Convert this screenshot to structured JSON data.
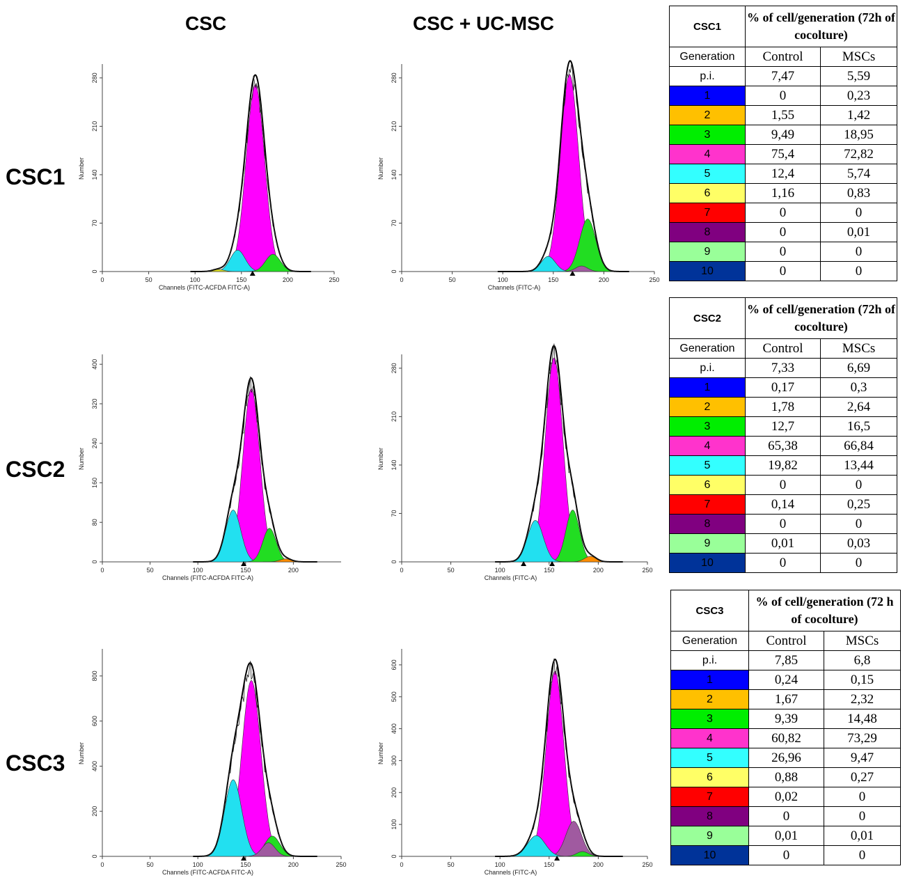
{
  "columns": {
    "left": "CSC",
    "right": "CSC  + UC-MSC"
  },
  "rows": [
    "CSC1",
    "CSC2",
    "CSC3"
  ],
  "chart_data": [
    {
      "type": "area",
      "sample": "CSC1",
      "condition": "CSC",
      "xlim": [
        0,
        250
      ],
      "ylim": [
        0,
        300
      ],
      "xticks": [
        0,
        50,
        100,
        150,
        200,
        250
      ],
      "yticks": [
        0,
        70,
        140,
        210,
        280
      ],
      "xlabel": "Channels (FITC-ACFDA FITC-A)",
      "ylabel": "Number",
      "marker": [
        162
      ],
      "peaks": [
        {
          "gen": 6,
          "mu": 125,
          "sigma": 6,
          "amp": 3
        },
        {
          "gen": 5,
          "mu": 146,
          "sigma": 8,
          "amp": 31
        },
        {
          "gen": 4,
          "mu": 165,
          "sigma": 10,
          "amp": 270
        },
        {
          "gen": 3,
          "mu": 184,
          "sigma": 8,
          "amp": 25
        }
      ]
    },
    {
      "type": "area",
      "sample": "CSC1",
      "condition": "CSC + UC-MSC",
      "xlim": [
        0,
        250
      ],
      "ylim": [
        0,
        300
      ],
      "xticks": [
        0,
        50,
        100,
        150,
        200,
        250
      ],
      "yticks": [
        0,
        70,
        140,
        210,
        280
      ],
      "xlabel": "Channels (FITC-A)",
      "ylabel": "Number",
      "marker": [
        169
      ],
      "peaks": [
        {
          "gen": 5,
          "mu": 145,
          "sigma": 7,
          "amp": 22
        },
        {
          "gen": 4,
          "mu": 166,
          "sigma": 9,
          "amp": 285
        },
        {
          "gen": 3,
          "mu": 184,
          "sigma": 8,
          "amp": 76
        },
        {
          "gen": 8,
          "mu": 178,
          "sigma": 6,
          "amp": 8
        }
      ]
    },
    {
      "type": "area",
      "sample": "CSC2",
      "condition": "CSC",
      "xlim": [
        0,
        250
      ],
      "ylim": [
        0,
        420
      ],
      "xticks": [
        0,
        50,
        100,
        150,
        200
      ],
      "yticks": [
        0,
        80,
        160,
        240,
        320,
        400
      ],
      "xlabel": "Channels (FITC-ACFDA FITC-A)",
      "ylabel": "Number",
      "marker": [
        148
      ],
      "peaks": [
        {
          "gen": 5,
          "mu": 137,
          "sigma": 8,
          "amp": 105
        },
        {
          "gen": 4,
          "mu": 156,
          "sigma": 9,
          "amp": 350
        },
        {
          "gen": 3,
          "mu": 175,
          "sigma": 7,
          "amp": 68
        },
        {
          "gen": 2,
          "mu": 192,
          "sigma": 6,
          "amp": 6
        }
      ]
    },
    {
      "type": "area",
      "sample": "CSC2",
      "condition": "CSC + UC-MSC",
      "xlim": [
        0,
        250
      ],
      "ylim": [
        0,
        300
      ],
      "xticks": [
        0,
        50,
        100,
        150,
        200,
        250
      ],
      "yticks": [
        0,
        70,
        140,
        210,
        280
      ],
      "xlabel": "Channels (FITC-A)",
      "ylabel": "Number",
      "marker": [
        124,
        153
      ],
      "peaks": [
        {
          "gen": 5,
          "mu": 136,
          "sigma": 8,
          "amp": 60
        },
        {
          "gen": 4,
          "mu": 155,
          "sigma": 9,
          "amp": 295
        },
        {
          "gen": 3,
          "mu": 174,
          "sigma": 7,
          "amp": 75
        },
        {
          "gen": 2,
          "mu": 192,
          "sigma": 6,
          "amp": 8
        }
      ]
    },
    {
      "type": "area",
      "sample": "CSC3",
      "condition": "CSC",
      "xlim": [
        0,
        250
      ],
      "ylim": [
        0,
        920
      ],
      "xticks": [
        0,
        50,
        100,
        150,
        200,
        250
      ],
      "yticks": [
        0,
        200,
        400,
        600,
        800
      ],
      "xlabel": "Channels (FITC-ACFDA FITC-A)",
      "ylabel": "Number",
      "marker": [
        148
      ],
      "peaks": [
        {
          "gen": 5,
          "mu": 137,
          "sigma": 9,
          "amp": 340
        },
        {
          "gen": 4,
          "mu": 156,
          "sigma": 10,
          "amp": 780
        },
        {
          "gen": 3,
          "mu": 178,
          "sigma": 8,
          "amp": 90
        },
        {
          "gen": 8,
          "mu": 174,
          "sigma": 7,
          "amp": 60
        }
      ]
    },
    {
      "type": "area",
      "sample": "CSC3",
      "condition": "CSC + UC-MSC",
      "xlim": [
        0,
        250
      ],
      "ylim": [
        0,
        650
      ],
      "xticks": [
        0,
        50,
        100,
        150,
        200,
        250
      ],
      "yticks": [
        0,
        100,
        200,
        300,
        400,
        500,
        600
      ],
      "xlabel": "Channels (FITC-A)",
      "ylabel": "Number",
      "marker": [
        158
      ],
      "peaks": [
        {
          "gen": 5,
          "mu": 137,
          "sigma": 9,
          "amp": 65
        },
        {
          "gen": 4,
          "mu": 156,
          "sigma": 9,
          "amp": 580
        },
        {
          "gen": 8,
          "mu": 175,
          "sigma": 8,
          "amp": 110
        },
        {
          "gen": 3,
          "mu": 184,
          "sigma": 6,
          "amp": 15
        }
      ]
    },
    {
      "type": "table",
      "name": "CSC1",
      "title": "% of cell/generation (72h of cocolture)",
      "headers": [
        "Generation",
        "Control",
        "MSCs"
      ],
      "rows": [
        [
          "p.i.",
          "7,47",
          "5,59"
        ],
        [
          "1",
          "0",
          "0,23"
        ],
        [
          "2",
          "1,55",
          "1,42"
        ],
        [
          "3",
          "9,49",
          "18,95"
        ],
        [
          "4",
          "75,4",
          "72,82"
        ],
        [
          "5",
          "12,4",
          "5,74"
        ],
        [
          "6",
          "1,16",
          "0,83"
        ],
        [
          "7",
          "0",
          "0"
        ],
        [
          "8",
          "0",
          "0,01"
        ],
        [
          "9",
          "0",
          "0"
        ],
        [
          "10",
          "0",
          "0"
        ]
      ]
    },
    {
      "type": "table",
      "name": "CSC2",
      "title": "% of cell/generation (72h of cocolture)",
      "headers": [
        "Generation",
        "Control",
        "MSCs"
      ],
      "rows": [
        [
          "p.i.",
          "7,33",
          "6,69"
        ],
        [
          "1",
          "0,17",
          "0,3"
        ],
        [
          "2",
          "1,78",
          "2,64"
        ],
        [
          "3",
          "12,7",
          "16,5"
        ],
        [
          "4",
          "65,38",
          "66,84"
        ],
        [
          "5",
          "19,82",
          "13,44"
        ],
        [
          "6",
          "0",
          "0"
        ],
        [
          "7",
          "0,14",
          "0,25"
        ],
        [
          "8",
          "0",
          "0"
        ],
        [
          "9",
          "0,01",
          "0,03"
        ],
        [
          "10",
          "0",
          "0"
        ]
      ]
    },
    {
      "type": "table",
      "name": "CSC3",
      "title": "% of cell/generation (72 h of cocolture)",
      "headers": [
        "Generation",
        "Control",
        "MSCs"
      ],
      "rows": [
        [
          "p.i.",
          "7,85",
          "6,8"
        ],
        [
          "1",
          "0,24",
          "0,15"
        ],
        [
          "2",
          "1,67",
          "2,32"
        ],
        [
          "3",
          "9,39",
          "14,48"
        ],
        [
          "4",
          "60,82",
          "73,29"
        ],
        [
          "5",
          "26,96",
          "9,47"
        ],
        [
          "6",
          "0,88",
          "0,27"
        ],
        [
          "7",
          "0,02",
          "0"
        ],
        [
          "8",
          "0",
          "0"
        ],
        [
          "9",
          "0,01",
          "0,01"
        ],
        [
          "10",
          "0",
          "0"
        ]
      ]
    }
  ],
  "generation_colors": {
    "p.i.": "#ffffff",
    "1": "#0000ff",
    "2": "#ffc000",
    "3": "#00ee00",
    "4": "#ff33cc",
    "5": "#33ffff",
    "6": "#ffff66",
    "7": "#ff0000",
    "8": "#800080",
    "9": "#99ff99",
    "10": "#003399"
  },
  "peak_colors": {
    "2": "#ff8c00",
    "3": "#22dd22",
    "4": "#ff00ff",
    "5": "#22e0f0",
    "6": "#e0e020",
    "8": "#a05aa0"
  }
}
